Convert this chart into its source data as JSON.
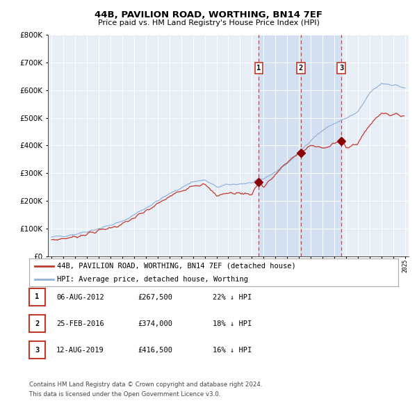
{
  "title": "44B, PAVILION ROAD, WORTHING, BN14 7EF",
  "subtitle": "Price paid vs. HM Land Registry's House Price Index (HPI)",
  "hpi_color": "#92b4d8",
  "price_color": "#c0392b",
  "marker_color": "#8b0000",
  "background_color": "#ffffff",
  "plot_bg_color": "#e8eef6",
  "grid_color": "#ffffff",
  "shade_color": "#c5d8f0",
  "ylim": [
    0,
    800000
  ],
  "yticks": [
    0,
    100000,
    200000,
    300000,
    400000,
    500000,
    600000,
    700000,
    800000
  ],
  "legend_label_price": "44B, PAVILION ROAD, WORTHING, BN14 7EF (detached house)",
  "legend_label_hpi": "HPI: Average price, detached house, Worthing",
  "transactions": [
    {
      "label": "1",
      "date": "06-AUG-2012",
      "x": 2012.59,
      "price": 267500,
      "pct": "22%",
      "dir": "↓"
    },
    {
      "label": "2",
      "date": "25-FEB-2016",
      "x": 2016.15,
      "price": 374000,
      "pct": "18%",
      "dir": "↓"
    },
    {
      "label": "3",
      "date": "12-AUG-2019",
      "x": 2019.59,
      "price": 416500,
      "pct": "16%",
      "dir": "↓"
    }
  ],
  "footnote1": "Contains HM Land Registry data © Crown copyright and database right 2024.",
  "footnote2": "This data is licensed under the Open Government Licence v3.0.",
  "hpi_x": [
    1995.0,
    1995.08,
    1995.17,
    1995.25,
    1995.33,
    1995.42,
    1995.5,
    1995.58,
    1995.67,
    1995.75,
    1995.83,
    1995.92,
    1996.0,
    1996.08,
    1996.17,
    1996.25,
    1996.33,
    1996.42,
    1996.5,
    1996.58,
    1996.67,
    1996.75,
    1996.83,
    1996.92,
    1997.0,
    1997.08,
    1997.17,
    1997.25,
    1997.33,
    1997.42,
    1997.5,
    1997.58,
    1997.67,
    1997.75,
    1997.83,
    1997.92,
    1998.0,
    1998.08,
    1998.17,
    1998.25,
    1998.33,
    1998.42,
    1998.5,
    1998.58,
    1998.67,
    1998.75,
    1998.83,
    1998.92,
    1999.0,
    1999.08,
    1999.17,
    1999.25,
    1999.33,
    1999.42,
    1999.5,
    1999.58,
    1999.67,
    1999.75,
    1999.83,
    1999.92,
    2000.0,
    2000.08,
    2000.17,
    2000.25,
    2000.33,
    2000.42,
    2000.5,
    2000.58,
    2000.67,
    2000.75,
    2000.83,
    2000.92,
    2001.0,
    2001.08,
    2001.17,
    2001.25,
    2001.33,
    2001.42,
    2001.5,
    2001.58,
    2001.67,
    2001.75,
    2001.83,
    2001.92,
    2002.0,
    2002.08,
    2002.17,
    2002.25,
    2002.33,
    2002.42,
    2002.5,
    2002.58,
    2002.67,
    2002.75,
    2002.83,
    2002.92,
    2003.0,
    2003.08,
    2003.17,
    2003.25,
    2003.33,
    2003.42,
    2003.5,
    2003.58,
    2003.67,
    2003.75,
    2003.83,
    2003.92,
    2004.0,
    2004.08,
    2004.17,
    2004.25,
    2004.33,
    2004.42,
    2004.5,
    2004.58,
    2004.67,
    2004.75,
    2004.83,
    2004.92,
    2005.0,
    2005.08,
    2005.17,
    2005.25,
    2005.33,
    2005.42,
    2005.5,
    2005.58,
    2005.67,
    2005.75,
    2005.83,
    2005.92,
    2006.0,
    2006.08,
    2006.17,
    2006.25,
    2006.33,
    2006.42,
    2006.5,
    2006.58,
    2006.67,
    2006.75,
    2006.83,
    2006.92,
    2007.0,
    2007.08,
    2007.17,
    2007.25,
    2007.33,
    2007.42,
    2007.5,
    2007.58,
    2007.67,
    2007.75,
    2007.83,
    2007.92,
    2008.0,
    2008.08,
    2008.17,
    2008.25,
    2008.33,
    2008.42,
    2008.5,
    2008.58,
    2008.67,
    2008.75,
    2008.83,
    2008.92,
    2009.0,
    2009.08,
    2009.17,
    2009.25,
    2009.33,
    2009.42,
    2009.5,
    2009.58,
    2009.67,
    2009.75,
    2009.83,
    2009.92,
    2010.0,
    2010.08,
    2010.17,
    2010.25,
    2010.33,
    2010.42,
    2010.5,
    2010.58,
    2010.67,
    2010.75,
    2010.83,
    2010.92,
    2011.0,
    2011.08,
    2011.17,
    2011.25,
    2011.33,
    2011.42,
    2011.5,
    2011.58,
    2011.67,
    2011.75,
    2011.83,
    2011.92,
    2012.0,
    2012.08,
    2012.17,
    2012.25,
    2012.33,
    2012.42,
    2012.5,
    2012.58,
    2012.67,
    2012.75,
    2012.83,
    2012.92,
    2013.0,
    2013.08,
    2013.17,
    2013.25,
    2013.33,
    2013.42,
    2013.5,
    2013.58,
    2013.67,
    2013.75,
    2013.83,
    2013.92,
    2014.0,
    2014.08,
    2014.17,
    2014.25,
    2014.33,
    2014.42,
    2014.5,
    2014.58,
    2014.67,
    2014.75,
    2014.83,
    2014.92,
    2015.0,
    2015.08,
    2015.17,
    2015.25,
    2015.33,
    2015.42,
    2015.5,
    2015.58,
    2015.67,
    2015.75,
    2015.83,
    2015.92,
    2016.0,
    2016.08,
    2016.17,
    2016.25,
    2016.33,
    2016.42,
    2016.5,
    2016.58,
    2016.67,
    2016.75,
    2016.83,
    2016.92,
    2017.0,
    2017.08,
    2017.17,
    2017.25,
    2017.33,
    2017.42,
    2017.5,
    2017.58,
    2017.67,
    2017.75,
    2017.83,
    2017.92,
    2018.0,
    2018.08,
    2018.17,
    2018.25,
    2018.33,
    2018.42,
    2018.5,
    2018.58,
    2018.67,
    2018.75,
    2018.83,
    2018.92,
    2019.0,
    2019.08,
    2019.17,
    2019.25,
    2019.33,
    2019.42,
    2019.5,
    2019.58,
    2019.67,
    2019.75,
    2019.83,
    2019.92,
    2020.0,
    2020.08,
    2020.17,
    2020.25,
    2020.33,
    2020.42,
    2020.5,
    2020.58,
    2020.67,
    2020.75,
    2020.83,
    2020.92,
    2021.0,
    2021.08,
    2021.17,
    2021.25,
    2021.33,
    2021.42,
    2021.5,
    2021.58,
    2021.67,
    2021.75,
    2021.83,
    2021.92,
    2022.0,
    2022.08,
    2022.17,
    2022.25,
    2022.33,
    2022.42,
    2022.5,
    2022.58,
    2022.67,
    2022.75,
    2022.83,
    2022.92,
    2023.0,
    2023.08,
    2023.17,
    2023.25,
    2023.33,
    2023.42,
    2023.5,
    2023.58,
    2023.67,
    2023.75,
    2023.83,
    2023.92,
    2024.0,
    2024.08,
    2024.17,
    2024.25,
    2024.33,
    2024.42,
    2024.5,
    2024.58,
    2024.67,
    2024.75,
    2024.83,
    2024.92,
    2025.0
  ],
  "price_x": [
    1995.0,
    1995.08,
    1995.17,
    1995.25,
    1995.33,
    1995.42,
    1995.5,
    1995.58,
    1995.67,
    1995.75,
    1995.83,
    1995.92,
    1996.0,
    1996.08,
    1996.17,
    1996.25,
    1996.33,
    1996.42,
    1996.5,
    1996.58,
    1996.67,
    1996.75,
    1996.83,
    1996.92,
    1997.0,
    1997.08,
    1997.17,
    1997.25,
    1997.33,
    1997.42,
    1997.5,
    1997.58,
    1997.67,
    1997.75,
    1997.83,
    1997.92,
    1998.0,
    1998.08,
    1998.17,
    1998.25,
    1998.33,
    1998.42,
    1998.5,
    1998.58,
    1998.67,
    1998.75,
    1998.83,
    1998.92,
    1999.0,
    1999.08,
    1999.17,
    1999.25,
    1999.33,
    1999.42,
    1999.5,
    1999.58,
    1999.67,
    1999.75,
    1999.83,
    1999.92,
    2000.0,
    2000.08,
    2000.17,
    2000.25,
    2000.33,
    2000.42,
    2000.5,
    2000.58,
    2000.67,
    2000.75,
    2000.83,
    2000.92,
    2001.0,
    2001.08,
    2001.17,
    2001.25,
    2001.33,
    2001.42,
    2001.5,
    2001.58,
    2001.67,
    2001.75,
    2001.83,
    2001.92,
    2002.0,
    2002.08,
    2002.17,
    2002.25,
    2002.33,
    2002.42,
    2002.5,
    2002.58,
    2002.67,
    2002.75,
    2002.83,
    2002.92,
    2003.0,
    2003.08,
    2003.17,
    2003.25,
    2003.33,
    2003.42,
    2003.5,
    2003.58,
    2003.67,
    2003.75,
    2003.83,
    2003.92,
    2004.0,
    2004.08,
    2004.17,
    2004.25,
    2004.33,
    2004.42,
    2004.5,
    2004.58,
    2004.67,
    2004.75,
    2004.83,
    2004.92,
    2005.0,
    2005.08,
    2005.17,
    2005.25,
    2005.33,
    2005.42,
    2005.5,
    2005.58,
    2005.67,
    2005.75,
    2005.83,
    2005.92,
    2006.0,
    2006.08,
    2006.17,
    2006.25,
    2006.33,
    2006.42,
    2006.5,
    2006.58,
    2006.67,
    2006.75,
    2006.83,
    2006.92,
    2007.0,
    2007.08,
    2007.17,
    2007.25,
    2007.33,
    2007.42,
    2007.5,
    2007.58,
    2007.67,
    2007.75,
    2007.83,
    2007.92,
    2008.0,
    2008.08,
    2008.17,
    2008.25,
    2008.33,
    2008.42,
    2008.5,
    2008.58,
    2008.67,
    2008.75,
    2008.83,
    2008.92,
    2009.0,
    2009.08,
    2009.17,
    2009.25,
    2009.33,
    2009.42,
    2009.5,
    2009.58,
    2009.67,
    2009.75,
    2009.83,
    2009.92,
    2010.0,
    2010.08,
    2010.17,
    2010.25,
    2010.33,
    2010.42,
    2010.5,
    2010.58,
    2010.67,
    2010.75,
    2010.83,
    2010.92,
    2011.0,
    2011.08,
    2011.17,
    2011.25,
    2011.33,
    2011.42,
    2011.5,
    2011.58,
    2011.67,
    2011.75,
    2011.83,
    2011.92,
    2012.0,
    2012.08,
    2012.17,
    2012.25,
    2012.33,
    2012.42,
    2012.5,
    2012.59,
    2012.67,
    2012.75,
    2012.83,
    2012.92,
    2013.0,
    2013.08,
    2013.17,
    2013.25,
    2013.33,
    2013.42,
    2013.5,
    2013.58,
    2013.67,
    2013.75,
    2013.83,
    2013.92,
    2014.0,
    2014.08,
    2014.17,
    2014.25,
    2014.33,
    2014.42,
    2014.5,
    2014.58,
    2014.67,
    2014.75,
    2014.83,
    2014.92,
    2015.0,
    2015.08,
    2015.17,
    2015.25,
    2015.33,
    2015.42,
    2015.5,
    2015.58,
    2015.67,
    2015.75,
    2015.83,
    2015.92,
    2016.0,
    2016.15,
    2016.25,
    2016.33,
    2016.42,
    2016.5,
    2016.58,
    2016.67,
    2016.75,
    2016.83,
    2016.92,
    2017.0,
    2017.08,
    2017.17,
    2017.25,
    2017.33,
    2017.42,
    2017.5,
    2017.58,
    2017.67,
    2017.75,
    2017.83,
    2017.92,
    2018.0,
    2018.08,
    2018.17,
    2018.25,
    2018.33,
    2018.42,
    2018.5,
    2018.58,
    2018.67,
    2018.75,
    2018.83,
    2018.92,
    2019.0,
    2019.08,
    2019.17,
    2019.25,
    2019.33,
    2019.42,
    2019.5,
    2019.59,
    2019.67,
    2019.75,
    2019.83,
    2019.92,
    2020.0,
    2020.08,
    2020.17,
    2020.25,
    2020.33,
    2020.42,
    2020.5,
    2020.58,
    2020.67,
    2020.75,
    2020.83,
    2020.92,
    2021.0,
    2021.08,
    2021.17,
    2021.25,
    2021.33,
    2021.42,
    2021.5,
    2021.58,
    2021.67,
    2021.75,
    2021.83,
    2021.92,
    2022.0,
    2022.08,
    2022.17,
    2022.25,
    2022.33,
    2022.42,
    2022.5,
    2022.58,
    2022.67,
    2022.75,
    2022.83,
    2022.92,
    2023.0,
    2023.08,
    2023.17,
    2023.25,
    2023.33,
    2023.42,
    2023.5,
    2023.58,
    2023.67,
    2023.75,
    2023.83,
    2023.92,
    2024.0,
    2024.08,
    2024.17,
    2024.25,
    2024.33,
    2024.42,
    2024.5,
    2024.58,
    2024.67,
    2024.75,
    2024.83,
    2024.92
  ]
}
